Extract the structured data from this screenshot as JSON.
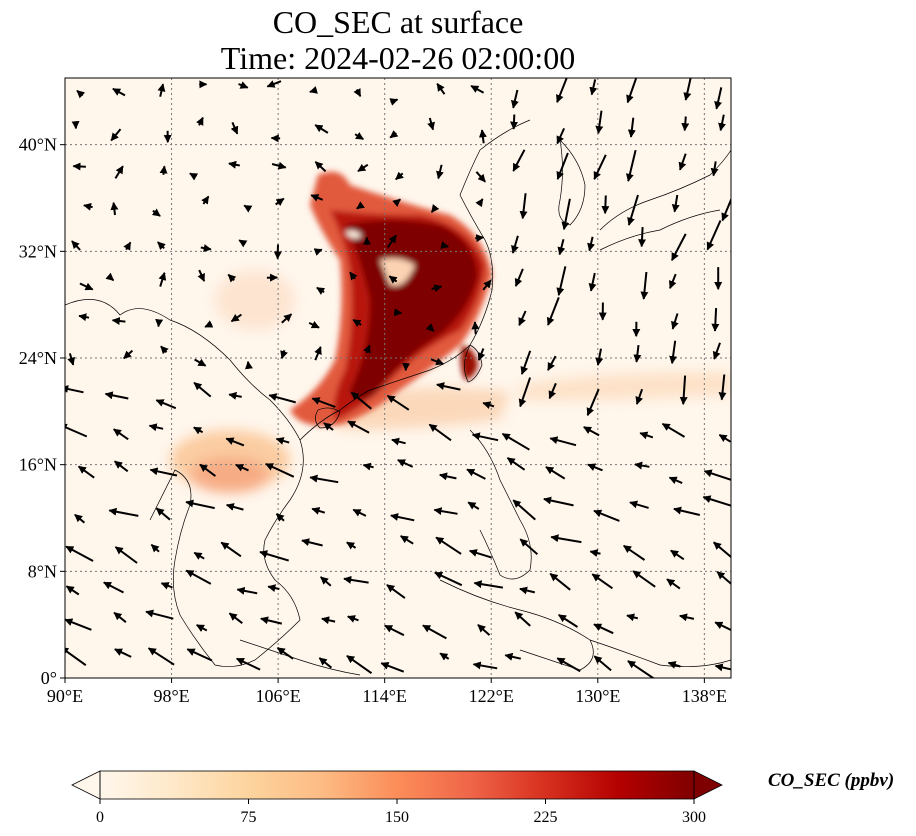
{
  "title": "CO_SEC at surface",
  "subtitle": "Time: 2024-02-26 02:00:00",
  "map": {
    "projection": "PlateCarree",
    "lon_range": [
      90,
      140
    ],
    "lat_range": [
      0,
      45
    ],
    "gridlines": true,
    "lon_ticks": [
      {
        "lon": 90,
        "label": "90°E"
      },
      {
        "lon": 98,
        "label": "98°E"
      },
      {
        "lon": 106,
        "label": "106°E"
      },
      {
        "lon": 114,
        "label": "114°E"
      },
      {
        "lon": 122,
        "label": "122°E"
      },
      {
        "lon": 130,
        "label": "130°E"
      },
      {
        "lon": 138,
        "label": "138°E"
      }
    ],
    "lat_ticks": [
      {
        "lat": 0,
        "label": "0°"
      },
      {
        "lat": 8,
        "label": "8°N"
      },
      {
        "lat": 16,
        "label": "16°N"
      },
      {
        "lat": 24,
        "label": "24°N"
      },
      {
        "lat": 32,
        "label": "32°N"
      },
      {
        "lat": 40,
        "label": "40°N"
      }
    ]
  },
  "colorbar": {
    "label": "CO_SEC (ppbv)",
    "ticks": [
      "0",
      "75",
      "150",
      "225",
      "300"
    ],
    "range": [
      0,
      300
    ],
    "extend": "both",
    "colormap": "OrRd",
    "colors": [
      "#fff7ec",
      "#fee8c8",
      "#fdd49e",
      "#fdbb84",
      "#fc8d59",
      "#ef6548",
      "#d7301f",
      "#b30000",
      "#7f0000"
    ]
  }
}
